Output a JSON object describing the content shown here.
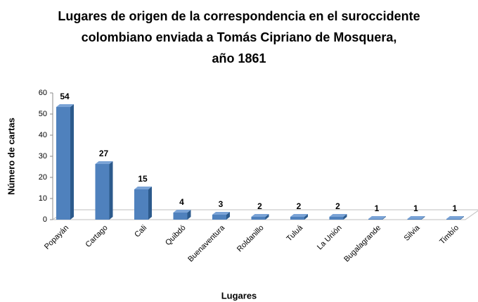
{
  "chart_data": {
    "type": "bar3d",
    "title": [
      "Lugares de origen de la correspondencia en el suroccidente",
      "colombiano enviada a Tomás Cipriano de Mosquera,",
      "año 1861"
    ],
    "x_label": "Lugares",
    "y_label": "Número de cartas",
    "categories": [
      "Popayán",
      "Cartago",
      "Cali",
      "Quibdó",
      "Buenaventura",
      "Roldanillo",
      "Tuluá",
      "La Unión",
      "Bugalagrande",
      "Silvia",
      "Timbío"
    ],
    "values": [
      54,
      27,
      15,
      4,
      3,
      2,
      2,
      2,
      1,
      1,
      1
    ],
    "color": "#4f81bd",
    "ylim": [
      0,
      60
    ],
    "yticks": [
      0,
      10,
      20,
      30,
      40,
      50,
      60
    ]
  }
}
